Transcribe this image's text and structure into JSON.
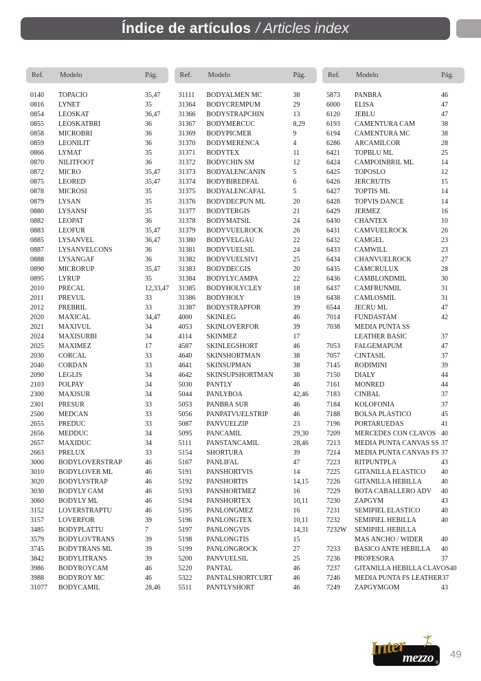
{
  "header": {
    "title_es": "Índice de artículos",
    "title_en": "/ Articles index"
  },
  "columns_header": {
    "ref": "Ref.",
    "modelo": "Modelo",
    "pag": "Pág."
  },
  "index": {
    "col1": {
      "rows": [
        [
          "0140",
          "TOPACIO",
          "35,47"
        ],
        [
          "0816",
          "LYNET",
          "35"
        ],
        [
          "0854",
          "LEOSKAT",
          "36,47"
        ],
        [
          "0855",
          "LEOSKATBRI",
          "36"
        ],
        [
          "0858",
          "MICROBRI",
          "36"
        ],
        [
          "0859",
          "LEONILIT",
          "36"
        ],
        [
          "0866",
          "LYMAT",
          "35"
        ],
        [
          "0870",
          "NILITFOOT",
          "36"
        ],
        [
          "0872",
          "MICRO",
          "35,47"
        ],
        [
          "0875",
          "LEORED",
          "35,47"
        ],
        [
          "0878",
          "MICROSI",
          "35"
        ],
        [
          "0879",
          "LYSAN",
          "35"
        ],
        [
          "0880",
          "LYSANSI",
          "35"
        ],
        [
          "0882",
          "LEOPAT",
          "36"
        ],
        [
          "0883",
          "LEOFUR",
          "35,47"
        ],
        [
          "0885",
          "LYSANVEL",
          "36,47"
        ],
        [
          "0887",
          "LYSANVELCONS",
          "36"
        ],
        [
          "0888",
          "LYSANGAF",
          "36"
        ],
        [
          "0890",
          "MICRORUP",
          "35,47"
        ],
        [
          "0895",
          "LYRUP",
          "35"
        ],
        [
          "2010",
          "PRECAL",
          "12,33,47"
        ],
        [
          "2011",
          "PREVUL",
          "33"
        ],
        [
          "2012",
          "PREBRIL",
          "33"
        ],
        [
          "2020",
          "MAXICAL",
          "34,47"
        ],
        [
          "2021",
          "MAXIVUL",
          "34"
        ],
        [
          "2024",
          "MAXISURBI",
          "34"
        ],
        [
          "2025",
          "MAXIMEZ",
          "17"
        ],
        [
          "2030",
          "CORCAL",
          "33"
        ],
        [
          "2040",
          "CORDAN",
          "33"
        ],
        [
          "2090",
          "LEGLIS",
          "34"
        ],
        [
          "2103",
          "POLPAY",
          "34"
        ],
        [
          "2300",
          "MAXISUR",
          "34"
        ],
        [
          "2301",
          "PRESUR",
          "33"
        ],
        [
          "2500",
          "MEDCAN",
          "33"
        ],
        [
          "2655",
          "PREDUC",
          "33"
        ],
        [
          "2656",
          "MEDDUC",
          "34"
        ],
        [
          "2657",
          "MAXIDUC",
          "34"
        ],
        [
          "2663",
          "PRELUX",
          "33"
        ],
        [
          "3000",
          "BODYLOVERSTRAP",
          "46"
        ],
        [
          "3010",
          "BODYLOVER ML",
          "46"
        ],
        [
          "3020",
          "BODYLYSTRAP",
          "46"
        ],
        [
          "3030",
          "BODYLY CAM",
          "46"
        ],
        [
          "3060",
          "BODYLY ML",
          "46"
        ],
        [
          "3152",
          "LOVERSTRAPTU",
          "46"
        ],
        [
          "3157",
          "LOVERFOR",
          "39"
        ],
        [
          "3485",
          "BODYPLATTU",
          "7"
        ],
        [
          "3579",
          "BODYLOVTRANS",
          "39"
        ],
        [
          "3745",
          "BODYTRANS ML",
          "39"
        ],
        [
          "3842",
          "BODYLITRANS",
          "39"
        ],
        [
          "3986",
          "BODYROYCAM",
          "46"
        ],
        [
          "3988",
          "BODYROY MC",
          "46"
        ],
        [
          "31077",
          "BODYCAMIL",
          "28,46"
        ]
      ]
    },
    "col2": {
      "rows": [
        [
          "31111",
          "BODYALMEN MC",
          "38"
        ],
        [
          "31364",
          "BODYCREMPUM",
          "29"
        ],
        [
          "31366",
          "BODYSTRAPCHIN",
          "13"
        ],
        [
          "31367",
          "BODYMERCUC",
          "8,29"
        ],
        [
          "31369",
          "BODYPICMER",
          "9"
        ],
        [
          "31370",
          "BODYMERENCA",
          "4"
        ],
        [
          "31371",
          "BODYTEX",
          "11"
        ],
        [
          "31372",
          "BODYCHIN SM",
          "12"
        ],
        [
          "31373",
          "BODYALENCANIN",
          "5"
        ],
        [
          "31374",
          "BODYBIREDFAL",
          "6"
        ],
        [
          "31375",
          "BODYALENCAFAL",
          "5"
        ],
        [
          "31376",
          "BODYDECPUN ML",
          "20"
        ],
        [
          "31377",
          "BODYTERGIS",
          "21"
        ],
        [
          "31378",
          "BODYMATSIL",
          "24"
        ],
        [
          "31379",
          "BODYVUELROCK",
          "26"
        ],
        [
          "31380",
          "BODYVELGAU",
          "22"
        ],
        [
          "31381",
          "BODYVUELSIL",
          "24"
        ],
        [
          "31382",
          "BODYVUELSIVI",
          "25"
        ],
        [
          "31383",
          "BODYDECGIS",
          "20"
        ],
        [
          "31384",
          "BODYLYCAMPA",
          "22"
        ],
        [
          "31385",
          "BODYHOLYCLEY",
          "18"
        ],
        [
          "31386",
          "BODYHOLY",
          "19"
        ],
        [
          "31387",
          "BODYSTRAPFOR",
          "39"
        ],
        [
          "4000",
          "SKINLEG",
          "46"
        ],
        [
          "4053",
          "SKINLOVERFOR",
          "39"
        ],
        [
          "4114",
          "SKINMEZ",
          "17"
        ],
        [
          "4587",
          "SKINLEGSHORT",
          "46"
        ],
        [
          "4640",
          "SKINSHORTMAN",
          "38"
        ],
        [
          "4641",
          "SKINSUPMAN",
          "38"
        ],
        [
          "4642",
          "SKINSUPSHORTMAN",
          "38"
        ],
        [
          "5030",
          "PANTLY",
          "46"
        ],
        [
          "5044",
          "PANLYBOA",
          "42,46"
        ],
        [
          "5053",
          "PANBRA SUR",
          "46"
        ],
        [
          "5056",
          "PANPATVUELSTRIP",
          "46"
        ],
        [
          "5087",
          "PANVUELZIP",
          "23"
        ],
        [
          "5095",
          "PANCAMIL",
          "29,30"
        ],
        [
          "5111",
          "PANSTANCAMIL",
          "28,46"
        ],
        [
          "5154",
          "SHORTURA",
          "39"
        ],
        [
          "5167",
          "PANLIFAL",
          "47"
        ],
        [
          "5191",
          "PANSHORTVIS",
          "14"
        ],
        [
          "5192",
          "PANSHORTIS",
          "14,15"
        ],
        [
          "5193",
          "PANSHORTMEZ",
          "16"
        ],
        [
          "5194",
          "PANSHORTEX",
          "10,11"
        ],
        [
          "5195",
          "PANLONGMEZ",
          "16"
        ],
        [
          "5196",
          "PANLONGTEX",
          "10,11"
        ],
        [
          "5197",
          "PANLONGVIS",
          "14,31"
        ],
        [
          "5198",
          "PANLONGTIS",
          "15"
        ],
        [
          "5199",
          "PANLONGROCK",
          "27"
        ],
        [
          "5200",
          "PANVUELSIL",
          "25"
        ],
        [
          "5220",
          "PANTAL",
          "46"
        ],
        [
          "5322",
          "PANTALSHORTCURT",
          "46"
        ],
        [
          "5511",
          "PANTLYSHORT",
          "46"
        ]
      ]
    },
    "col3": {
      "rows": [
        [
          "5873",
          "PANBRA",
          "46"
        ],
        [
          "6000",
          "ELISA",
          "47"
        ],
        [
          "6120",
          "JEBLU",
          "47"
        ],
        [
          "6193",
          "CAMENTURA CAM",
          "38"
        ],
        [
          "6194",
          "CAMENTURA MC",
          "38"
        ],
        [
          "6286",
          "ARCAMILCOR",
          "28"
        ],
        [
          "6421",
          "TOPBLU ML",
          "25"
        ],
        [
          "6424",
          "CAMPOINBRIL ML",
          "14"
        ],
        [
          "6425",
          "TOPOSLO",
          "12"
        ],
        [
          "6426",
          "JERCRUTIS",
          "15"
        ],
        [
          "6427",
          "TOPTIS ML",
          "14"
        ],
        [
          "6428",
          "TOPVIS DANCE",
          "14"
        ],
        [
          "6429",
          "JERMEZ",
          "16"
        ],
        [
          "6430",
          "CHANTEX",
          "10"
        ],
        [
          "6431",
          "CAMVUELROCK",
          "26"
        ],
        [
          "6432",
          "CAMGEL",
          "23"
        ],
        [
          "6433",
          "CAMWILL",
          "23"
        ],
        [
          "6434",
          "CHANVUELROCK",
          "27"
        ],
        [
          "6435",
          "CAMCRULUX",
          "28"
        ],
        [
          "6436",
          "CAMBLONDMIL",
          "30"
        ],
        [
          "6437",
          "CAMFRUNMIL",
          "31"
        ],
        [
          "6438",
          "CAMLOSMIL",
          "31"
        ],
        [
          "6544",
          "JECRU ML",
          "47"
        ],
        [
          "7014",
          "FUNDASTAM",
          "42"
        ],
        [
          "7038",
          "MEDIA PUNTA SS",
          ""
        ],
        [
          "",
          "LEATHER BASIC",
          "37"
        ],
        [
          "7053",
          "FALGEMAPUM",
          "47"
        ],
        [
          "7057",
          "CINTASIL",
          "37"
        ],
        [
          "7145",
          "RODIMINI",
          "39"
        ],
        [
          "7150",
          "DIALY",
          "44"
        ],
        [
          "7161",
          "MONRED",
          "44"
        ],
        [
          "7183",
          "CINBAL",
          "37"
        ],
        [
          "7184",
          "KOLOFONIA",
          "37"
        ],
        [
          "7188",
          "BOLSA PLASTICO",
          "45"
        ],
        [
          "7196",
          "PORTARUEDAS",
          "41"
        ],
        [
          "7209",
          "MERCEDES CON CLAVOS",
          "40"
        ],
        [
          "7213",
          "MEDIA PUNTA CANVAS SS",
          "37"
        ],
        [
          "7214",
          "MEDIA PUNTA CANVAS FS",
          "37"
        ],
        [
          "7223",
          "RITPUNTPLA",
          "43"
        ],
        [
          "7225",
          "GITANILLA ELASTICO",
          "40"
        ],
        [
          "7226",
          "GITANILLA HEBILLA",
          "40"
        ],
        [
          "7229",
          "BOTA CABALLERO ADV",
          "40"
        ],
        [
          "7230",
          "ZAPGYM",
          "43"
        ],
        [
          "7231",
          "SEMIPIEL ELASTICO",
          "40"
        ],
        [
          "7232",
          "SEMIPIEL HEBILLA",
          "40"
        ],
        [
          "7232W",
          "SEMIPIEL HEBILLA",
          ""
        ],
        [
          "",
          "MAS ANCHO / WIDER",
          "40"
        ],
        [
          "7233",
          "BASICO ANTE HEBILLA",
          "40"
        ],
        [
          "7236",
          "PROFESORA",
          "37"
        ],
        [
          "7237",
          "GITANILLA HEBILLA CLAVOS",
          "40"
        ],
        [
          "7246",
          "MEDIA PUNTA FS LEATHER",
          "37"
        ],
        [
          "7249",
          "ZAPGYMGOM",
          "43"
        ]
      ]
    }
  },
  "footer": {
    "logo_part1": "Inter",
    "logo_part2": "mezzo",
    "registered": "®",
    "page_number": "49"
  },
  "colors": {
    "title_bar": "#59555b",
    "side_tab": "#a7a2a6",
    "table_header_bg": "#d2cfd2",
    "logo_gold": "#b1892e",
    "logo_bg": "#121011",
    "page_number_gray": "#8c8c8c"
  }
}
